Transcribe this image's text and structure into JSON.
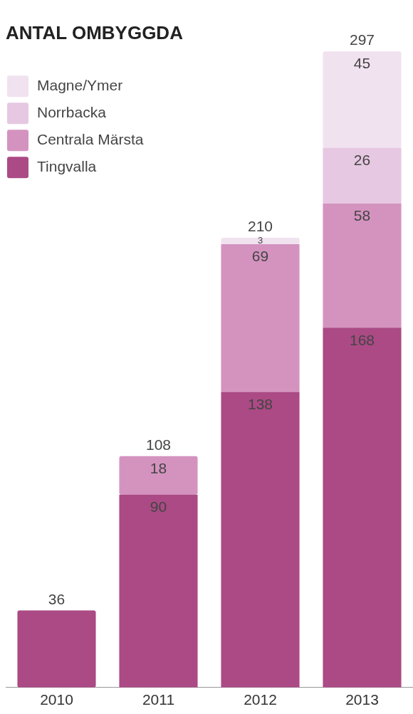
{
  "chart_data": {
    "type": "bar",
    "title": "ANTAL OMBYGGDA",
    "stacked": true,
    "legend": "top left",
    "grid": false,
    "categories": [
      "2010",
      "2011",
      "2012",
      "2013"
    ],
    "series": [
      {
        "name": "Tingvalla",
        "color": "#ab4a85",
        "values": [
          36,
          90,
          138,
          168
        ],
        "value_labels": [
          null,
          "90",
          "138",
          "168"
        ]
      },
      {
        "name": "Centrala Märsta",
        "color": "#d493bf",
        "values": [
          null,
          18,
          69,
          58
        ],
        "value_labels": [
          null,
          "18",
          "69",
          "58"
        ]
      },
      {
        "name": "Norrbacka",
        "color": "#e6c8e2",
        "values": [
          null,
          null,
          null,
          26
        ],
        "value_labels": [
          null,
          null,
          null,
          "26"
        ]
      },
      {
        "name": "Magne/Ymer",
        "color": "#f1e2f0",
        "values": [
          null,
          null,
          3,
          45
        ],
        "value_labels": [
          null,
          null,
          "3",
          "45"
        ]
      }
    ],
    "totals": [
      "36",
      "108",
      "210",
      "297"
    ]
  }
}
